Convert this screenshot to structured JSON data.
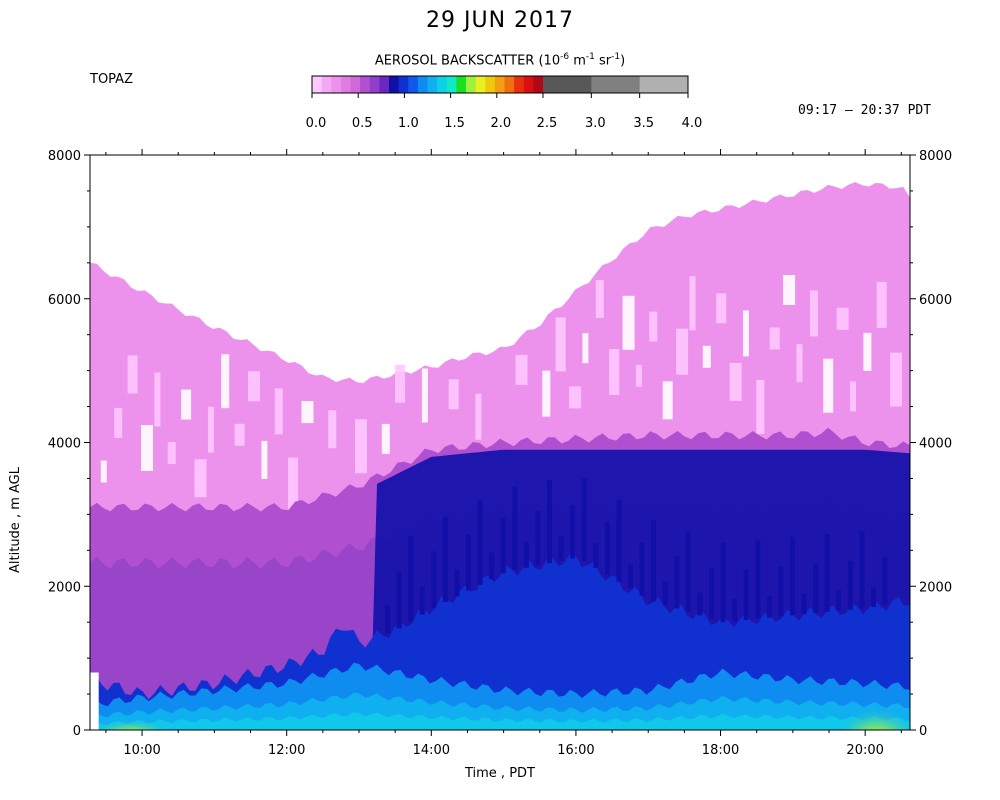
{
  "title": "29 JUN 2017",
  "instrument": "TOPAZ",
  "time_range": "09:17 – 20:37 PDT",
  "colorbar": {
    "title_main": "AEROSOL BACKSCATTER (10",
    "title_exp1": "-6",
    "title_mid": " m",
    "title_exp2": "-1",
    "title_mid2": " sr",
    "title_exp3": "-1",
    "title_end": ")",
    "tick_labels": [
      "0.0",
      "0.5",
      "1.0",
      "1.5",
      "2.0",
      "2.5",
      "3.0",
      "3.5",
      "4.0"
    ],
    "colors": [
      "#ffc8ff",
      "#f5a8f5",
      "#ec92ec",
      "#e07ce0",
      "#cf68d8",
      "#b050d0",
      "#9040c8",
      "#6a28c0",
      "#1010a8",
      "#1030d0",
      "#1058e8",
      "#0f8cf0",
      "#10b0f0",
      "#10d0e8",
      "#10e8c8",
      "#18e020",
      "#a0f040",
      "#e8f020",
      "#f0c810",
      "#f0a010",
      "#f07010",
      "#e83010",
      "#d81010",
      "#b00818",
      "#585858",
      "#808080",
      "#b0b0b0"
    ]
  },
  "chart_data": {
    "type": "heatmap",
    "title": "29 JUN 2017",
    "xlabel": "Time , PDT",
    "ylabel": "Altitude , m AGL",
    "x_ticks": [
      "10:00",
      "12:00",
      "14:00",
      "16:00",
      "18:00",
      "20:00"
    ],
    "x_tick_hours": [
      10,
      12,
      14,
      16,
      18,
      20
    ],
    "xlim_hours": [
      9.28,
      20.62
    ],
    "y_ticks": [
      0,
      2000,
      4000,
      6000,
      8000
    ],
    "ylim": [
      0,
      8000
    ],
    "colorscale_range": [
      0.0,
      4.0
    ],
    "top_of_data_profile": {
      "hours": [
        9.28,
        10.0,
        11.0,
        12.0,
        12.5,
        13.0,
        13.5,
        14.0,
        14.5,
        15.0,
        15.5,
        16.0,
        16.5,
        17.0,
        17.5,
        18.0,
        18.5,
        19.0,
        19.5,
        20.0,
        20.5,
        20.62
      ],
      "altitude_m": [
        6500,
        6100,
        5600,
        5150,
        4900,
        4850,
        4950,
        5050,
        5200,
        5300,
        5650,
        6100,
        6550,
        6950,
        7150,
        7250,
        7350,
        7450,
        7550,
        7600,
        7550,
        7400
      ]
    },
    "upper_layer_top_m": {
      "hours": [
        9.28,
        12.0,
        13.0,
        14.0,
        15.0,
        16.0,
        17.0,
        18.0,
        19.0,
        19.5,
        20.0,
        20.62
      ],
      "altitude_m": [
        3100,
        3100,
        3400,
        3900,
        4000,
        4050,
        4100,
        4100,
        4100,
        4150,
        4000,
        3950
      ]
    },
    "mixed_layer_top_m": {
      "hours": [
        9.28,
        10.0,
        11.0,
        12.0,
        12.5,
        12.8,
        13.0,
        13.5,
        14.0,
        15.0,
        16.0,
        17.0,
        18.0,
        19.0,
        20.0,
        20.62
      ],
      "altitude_m": [
        700,
        500,
        650,
        900,
        1100,
        1500,
        1200,
        1400,
        1700,
        2200,
        2400,
        1800,
        1500,
        1600,
        1700,
        1800
      ]
    },
    "surface_layer_top_m": {
      "hours": [
        9.28,
        10.0,
        11.0,
        12.0,
        13.0,
        14.0,
        15.0,
        16.0,
        17.0,
        18.0,
        19.0,
        20.0,
        20.62
      ],
      "altitude_m": [
        350,
        450,
        550,
        650,
        900,
        700,
        550,
        500,
        550,
        800,
        700,
        650,
        600
      ]
    },
    "surface_hotspots": [
      {
        "start_hour": 9.4,
        "end_hour": 10.3,
        "top_m": 250,
        "max_value": 2.4
      },
      {
        "start_hour": 19.7,
        "end_hour": 20.62,
        "top_m": 550,
        "max_value": 2.4
      }
    ]
  }
}
